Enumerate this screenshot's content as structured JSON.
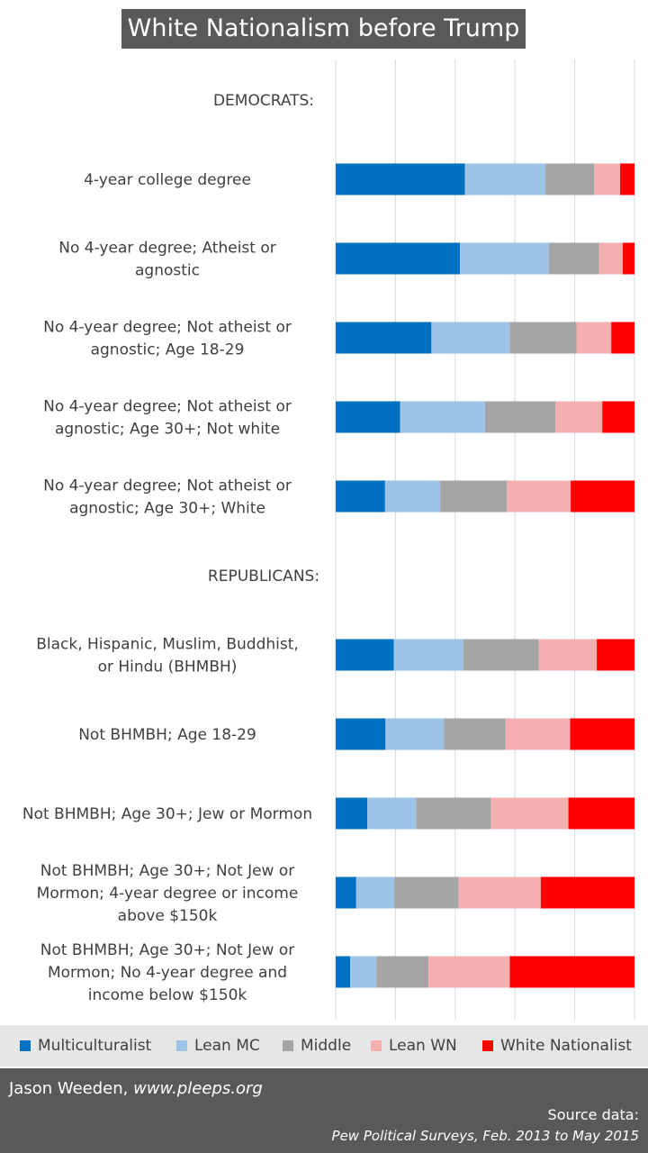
{
  "title": "White Nationalism before Trump",
  "chart_data": {
    "type": "bar",
    "orientation": "horizontal",
    "stacked": true,
    "normalized": true,
    "grid": true,
    "legend_position": "bottom",
    "rows": [
      {
        "label": "DEMOCRATS:",
        "kind": "header"
      },
      {
        "label": "4-year college degree",
        "kind": "data",
        "values": [
          0.45,
          0.28,
          0.17,
          0.09,
          0.05
        ]
      },
      {
        "label": "No 4-year degree; Atheist or agnostic",
        "kind": "data",
        "values": [
          0.42,
          0.3,
          0.17,
          0.08,
          0.04
        ]
      },
      {
        "label": "No 4-year degree; Not atheist or agnostic; Age 18-29",
        "kind": "data",
        "values": [
          0.33,
          0.27,
          0.23,
          0.12,
          0.08
        ]
      },
      {
        "label": "No 4-year degree; Not atheist or agnostic; Age 30+; Not white",
        "kind": "data",
        "values": [
          0.22,
          0.29,
          0.24,
          0.16,
          0.11
        ]
      },
      {
        "label": "No 4-year degree; Not atheist or agnostic; Age 30+; White",
        "kind": "data",
        "values": [
          0.17,
          0.19,
          0.23,
          0.22,
          0.22
        ]
      },
      {
        "label": "REPUBLICANS:",
        "kind": "header"
      },
      {
        "label": "Black, Hispanic, Muslim, Buddhist, or Hindu (BHMBH)",
        "kind": "data",
        "values": [
          0.2,
          0.24,
          0.26,
          0.2,
          0.13
        ]
      },
      {
        "label": "Not BHMBH; Age 18-29",
        "kind": "data",
        "values": [
          0.17,
          0.2,
          0.21,
          0.22,
          0.22
        ]
      },
      {
        "label": "Not BHMBH; Age 30+; Jew or Mormon",
        "kind": "data",
        "values": [
          0.11,
          0.17,
          0.26,
          0.27,
          0.23
        ]
      },
      {
        "label": "Not BHMBH; Age 30+; Not Jew or Mormon; 4-year degree or income above $150k",
        "kind": "data",
        "values": [
          0.07,
          0.13,
          0.22,
          0.28,
          0.32
        ]
      },
      {
        "label": "Not BHMBH; Age 30+; Not Jew or Mormon; No 4-year degree and income below $150k",
        "kind": "data",
        "values": [
          0.05,
          0.09,
          0.18,
          0.28,
          0.43
        ]
      }
    ],
    "series": [
      {
        "name": "Multiculturalist",
        "color": "#0070c0"
      },
      {
        "name": "Lean MC",
        "color": "#9dc3e6"
      },
      {
        "name": "Middle",
        "color": "#a5a5a5"
      },
      {
        "name": "Lean WN",
        "color": "#f4b0b0"
      },
      {
        "name": "White Nationalist",
        "color": "#ff0000"
      }
    ]
  },
  "footer": {
    "author": "Jason Weeden, ",
    "website": "www.pleeps.org",
    "source_label": "Source data:",
    "source": "Pew  Political Surveys, Feb. 2013 to May 2015"
  }
}
